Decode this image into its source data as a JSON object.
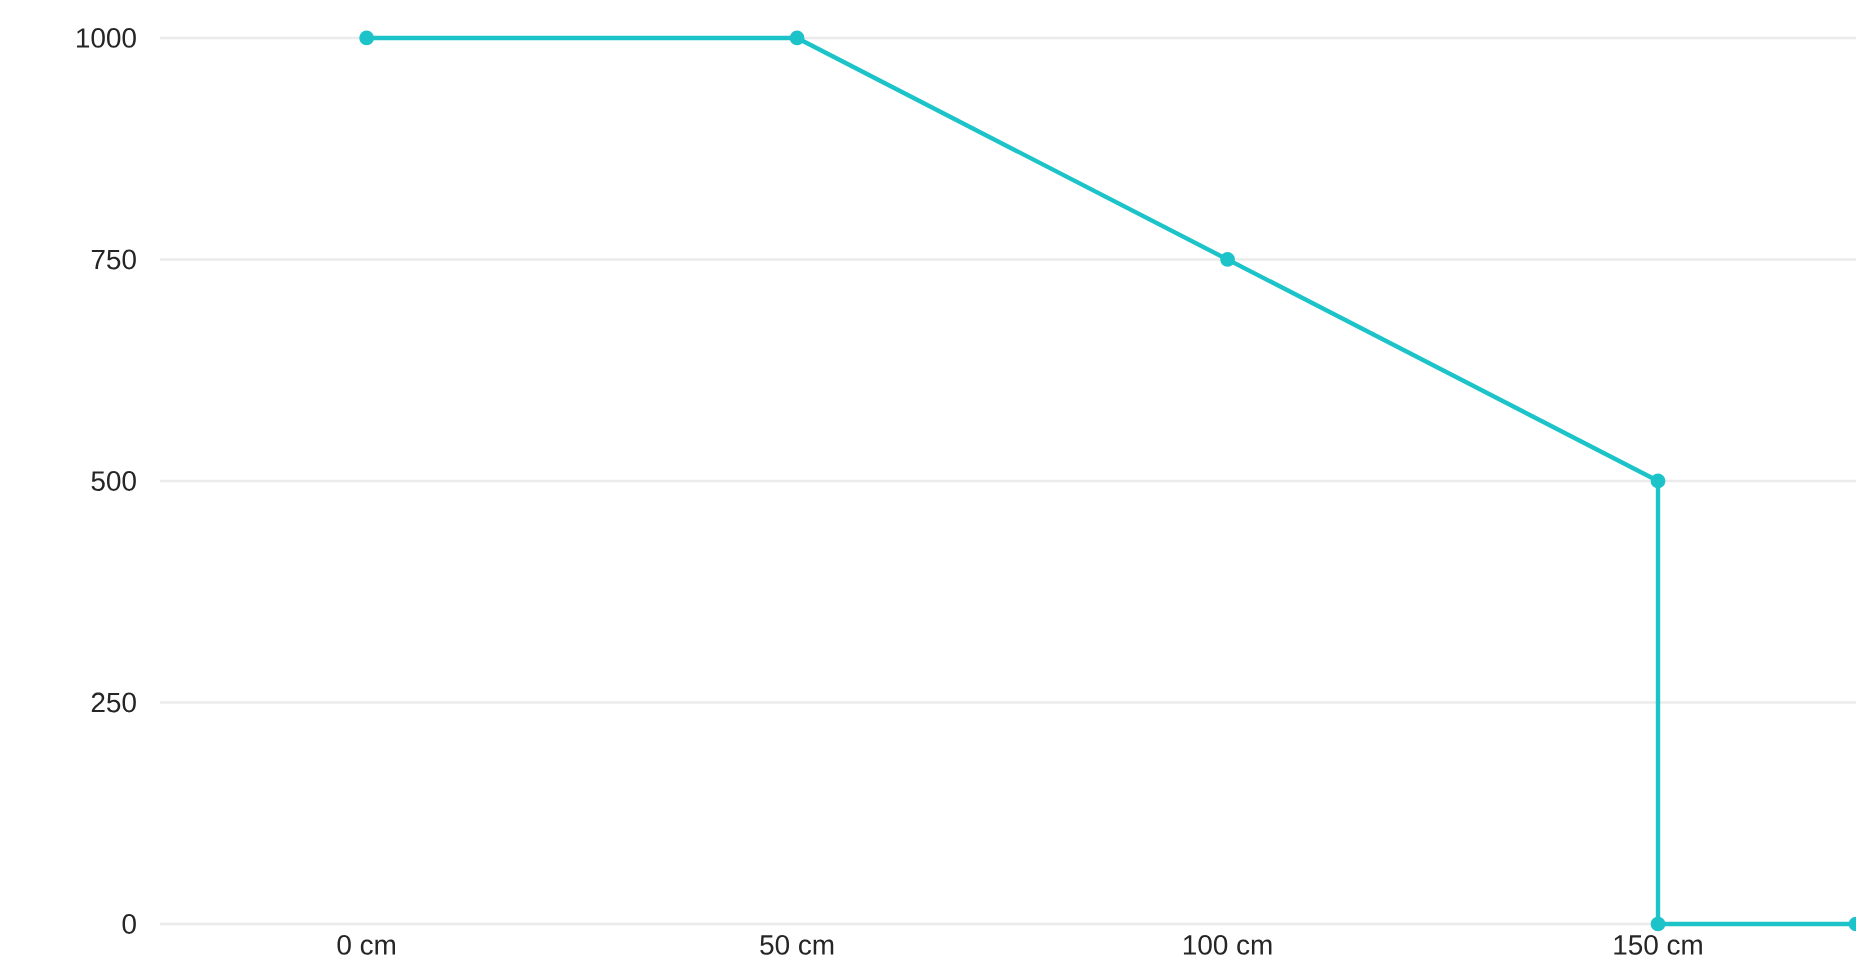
{
  "chart_data": {
    "type": "line",
    "x": [
      0,
      50,
      100,
      150,
      150,
      173
    ],
    "series": [
      {
        "color": "#1cc3c9",
        "values": [
          1000,
          1000,
          750,
          500,
          0,
          0
        ]
      }
    ],
    "xlim": [
      -24,
      173
    ],
    "xticks": [
      {
        "value": 0,
        "label": "0 cm"
      },
      {
        "value": 50,
        "label": "50 cm"
      },
      {
        "value": 100,
        "label": "100 cm"
      },
      {
        "value": 150,
        "label": "150 cm"
      }
    ],
    "ylim": [
      0,
      1000
    ],
    "yticks": [
      0,
      250,
      500,
      750,
      1000
    ],
    "grid": "y",
    "marker": "circle",
    "line_style": "solid"
  }
}
